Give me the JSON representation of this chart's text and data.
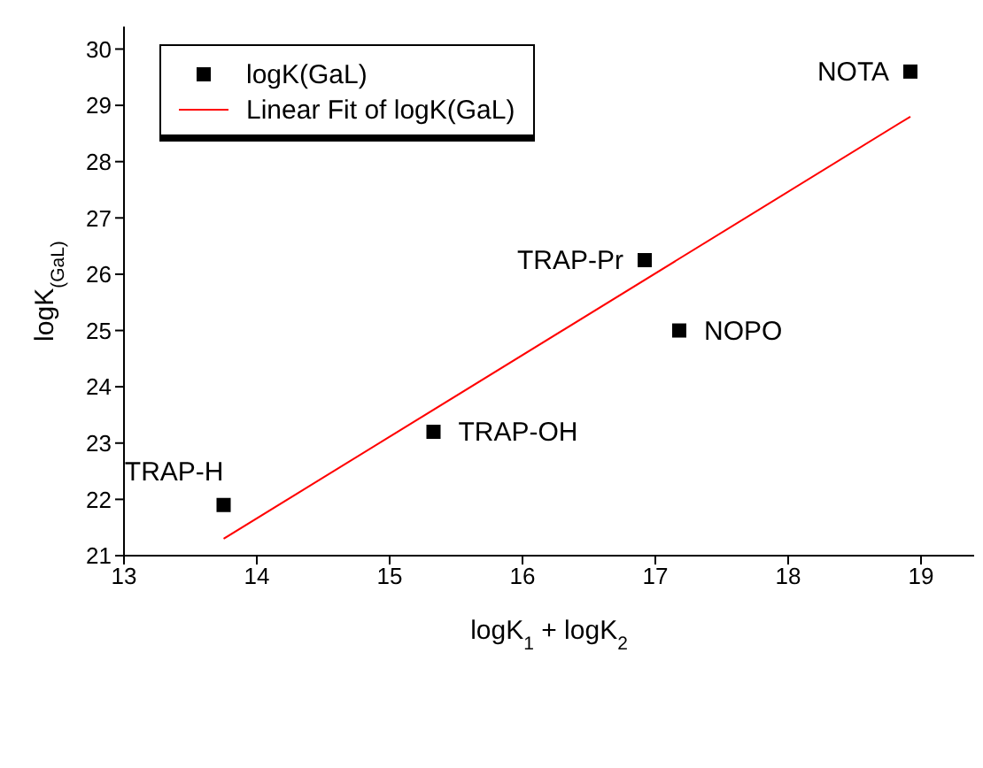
{
  "chart_data": {
    "type": "scatter",
    "xlabel": "logK$_{1}$ + logK$_{2}$",
    "ylabel": "logK$_{(GaL)}$",
    "xlim": [
      13,
      19.4
    ],
    "xticks": [
      13,
      14,
      15,
      16,
      17,
      18,
      19
    ],
    "ylim": [
      21,
      30.4
    ],
    "yticks": [
      21,
      22,
      23,
      24,
      25,
      26,
      27,
      28,
      29,
      30
    ],
    "series": [
      {
        "name": "logK(GaL)",
        "marker": "square",
        "color": "#000000",
        "x": [
          13.75,
          15.33,
          16.92,
          17.18,
          18.92
        ],
        "values": [
          21.9,
          23.2,
          26.25,
          25.0,
          29.6
        ]
      },
      {
        "name": "Linear Fit of logK(GaL)",
        "type": "line",
        "marker": "none",
        "color": "#ff0000",
        "x": [
          13.75,
          18.92
        ],
        "values": [
          21.3,
          28.8
        ]
      }
    ],
    "annotations": [
      {
        "text": "TRAP-H",
        "x": 13.75,
        "y": 21.9
      },
      {
        "text": "TRAP-OH",
        "x": 15.33,
        "y": 23.2
      },
      {
        "text": "TRAP-Pr",
        "x": 16.92,
        "y": 26.25
      },
      {
        "text": "NOPO",
        "x": 17.18,
        "y": 25.0
      },
      {
        "text": "NOTA",
        "x": 18.92,
        "y": 29.6
      }
    ],
    "legend": "top left",
    "grid": false
  }
}
